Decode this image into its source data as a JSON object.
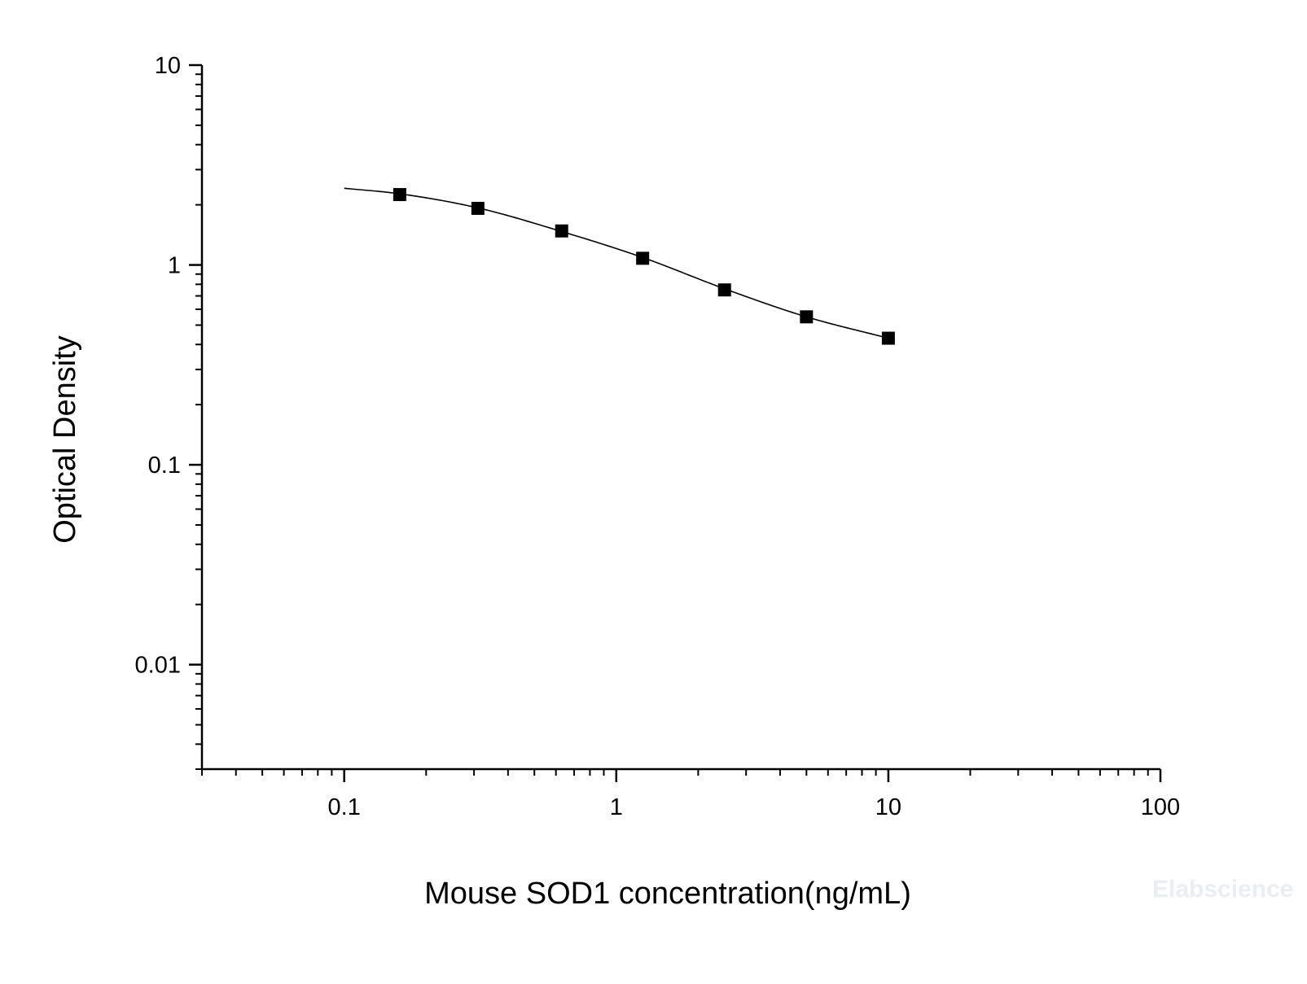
{
  "chart_data": {
    "type": "scatter",
    "title": "",
    "xlabel": "Mouse SOD1 concentration(ng/mL)",
    "ylabel": "Optical Density",
    "x_scale": "log",
    "y_scale": "log",
    "xlim": [
      0.03,
      100
    ],
    "ylim": [
      0.003,
      10
    ],
    "x_ticks": [
      0.1,
      1,
      10,
      100
    ],
    "x_tick_labels": [
      "0.1",
      "1",
      "10",
      "100"
    ],
    "y_ticks": [
      0.01,
      0.1,
      1,
      10
    ],
    "y_tick_labels": [
      "0.01",
      "0.1",
      "1",
      "10"
    ],
    "grid": false,
    "legend": "none",
    "series": [
      {
        "type": "scatter",
        "marker": "square",
        "color": "#000000",
        "x": [
          0.16,
          0.31,
          0.63,
          1.25,
          2.5,
          5,
          10
        ],
        "y": [
          2.25,
          1.92,
          1.48,
          1.08,
          0.75,
          0.55,
          0.43
        ]
      },
      {
        "type": "fit-line",
        "color": "#000000",
        "x": [
          0.1,
          0.16,
          0.31,
          0.63,
          1.25,
          2.5,
          5,
          10
        ],
        "y": [
          2.42,
          2.27,
          1.93,
          1.47,
          1.09,
          0.76,
          0.55,
          0.43
        ]
      }
    ]
  },
  "watermark": "Elabscience"
}
